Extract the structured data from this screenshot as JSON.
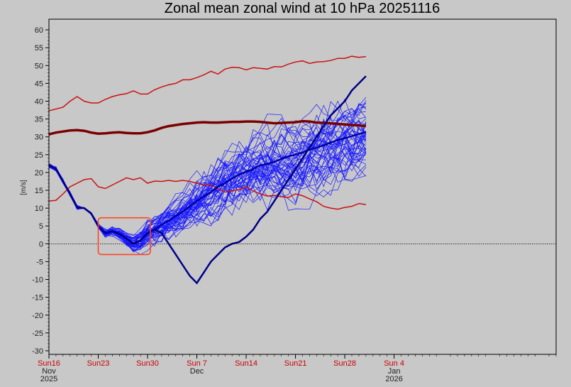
{
  "chart_data": {
    "type": "line",
    "title": "Zonal mean zonal wind at 10 hPa 20251116",
    "ylabel": "[m/s]",
    "xlabel": "",
    "ylim": [
      -31,
      63
    ],
    "xlim": [
      0,
      72
    ],
    "y_ticks": [
      60,
      55,
      50,
      45,
      40,
      35,
      30,
      25,
      20,
      15,
      10,
      5,
      0,
      -5,
      -10,
      -15,
      -20,
      -25,
      -30
    ],
    "x_ticks": [
      {
        "day": 0,
        "lines": [
          "Sun16",
          "Nov",
          "2025"
        ],
        "color": "#cc0000"
      },
      {
        "day": 7,
        "lines": [
          "Sun23"
        ],
        "color": "#cc0000"
      },
      {
        "day": 14,
        "lines": [
          "Sun30"
        ],
        "color": "#cc0000"
      },
      {
        "day": 21,
        "lines": [
          "Sun 7",
          "Dec"
        ],
        "color": "#cc0000"
      },
      {
        "day": 28,
        "lines": [
          "Sun14"
        ],
        "color": "#cc0000"
      },
      {
        "day": 35,
        "lines": [
          "Sun21"
        ],
        "color": "#cc0000"
      },
      {
        "day": 42,
        "lines": [
          "Sun28"
        ],
        "color": "#cc0000"
      },
      {
        "day": 49,
        "lines": [
          "Sun 4",
          "Jan",
          "2026"
        ],
        "color": "#cc0000"
      }
    ],
    "zero_line": true,
    "climatology": [
      {
        "name": "",
        "color": "#cc1111",
        "width": 1.5,
        "x": [
          0,
          2,
          3,
          4,
          5,
          6,
          7,
          8,
          9,
          10,
          11,
          12,
          13,
          14,
          15,
          16,
          17,
          18,
          19,
          20,
          21,
          22,
          23,
          24,
          25,
          26,
          27,
          28,
          29,
          30,
          31,
          32,
          33,
          34,
          35,
          36,
          37,
          38,
          39,
          40,
          41,
          42,
          43,
          44,
          45
        ],
        "y": [
          37.3,
          38.3,
          40,
          41.3,
          40,
          39.5,
          39.5,
          40.5,
          41.3,
          41.8,
          42.1,
          42.9,
          42,
          42,
          43.2,
          44,
          44.6,
          45,
          46,
          46,
          46.6,
          47.4,
          48.4,
          47.6,
          49,
          49.5,
          49.4,
          48.8,
          49.4,
          49.2,
          49,
          49.7,
          49.6,
          50.4,
          51,
          51.3,
          50.6,
          51,
          51.1,
          51.4,
          52,
          52,
          52.6,
          52.3,
          52.5
        ]
      },
      {
        "name": "",
        "color": "#cc1111",
        "width": 1.5,
        "x": [
          0,
          1,
          2,
          3,
          4,
          5,
          6,
          7,
          8,
          9,
          10,
          11,
          12,
          13,
          14,
          15,
          16,
          17,
          18,
          19,
          20,
          21,
          22,
          23,
          24,
          25,
          26,
          27,
          28,
          29,
          30,
          31,
          32,
          33,
          34,
          35,
          36,
          37,
          38,
          39,
          40,
          41,
          42,
          43,
          44,
          45
        ],
        "y": [
          12,
          12.2,
          14,
          16,
          17,
          18,
          18.3,
          16,
          15.5,
          16.5,
          17.5,
          18.5,
          18,
          18.5,
          17,
          17.6,
          17.5,
          17.8,
          17.5,
          17.8,
          17.5,
          17,
          16.5,
          16.5,
          15.5,
          14.5,
          14.8,
          15.2,
          16,
          14.8,
          14,
          13.4,
          13.6,
          13.2,
          13,
          14,
          13.5,
          12.6,
          11.8,
          10.5,
          10,
          9.7,
          10.2,
          10.5,
          11.3,
          11
        ]
      },
      {
        "name": "",
        "color": "#7a0000",
        "width": 3.5,
        "x": [
          0,
          1,
          2,
          3,
          4,
          5,
          6,
          7,
          8,
          9,
          10,
          11,
          12,
          13,
          14,
          15,
          16,
          17,
          18,
          19,
          20,
          21,
          22,
          23,
          24,
          25,
          26,
          27,
          28,
          29,
          30,
          31,
          32,
          33,
          34,
          35,
          36,
          37,
          38,
          39,
          40,
          41,
          42,
          43,
          44,
          45
        ],
        "y": [
          30.7,
          31.2,
          31.5,
          31.8,
          31.9,
          31.7,
          31.2,
          30.9,
          31,
          31.2,
          31.3,
          31.1,
          31,
          31,
          31.3,
          31.8,
          32.5,
          33,
          33.3,
          33.6,
          33.8,
          34,
          34.1,
          34,
          34,
          34.1,
          34.2,
          34.2,
          34.3,
          34.3,
          34.2,
          34,
          33.8,
          33.9,
          34,
          34.1,
          34.4,
          34.3,
          34,
          33.9,
          33.8,
          33.6,
          33.5,
          33.3,
          33.2,
          33
        ]
      }
    ],
    "deterministic": [
      {
        "name": "",
        "color": "#0000aa",
        "width": 2.5,
        "x": [
          0,
          1,
          2,
          3,
          4,
          5,
          6,
          7,
          8,
          9,
          10,
          11,
          12,
          13,
          14,
          15,
          16,
          17,
          18,
          19,
          20,
          21,
          22,
          23,
          24,
          25,
          26,
          27,
          28,
          29,
          30,
          31,
          32,
          33,
          34,
          35,
          36,
          37,
          38,
          39,
          40,
          41,
          42,
          43,
          44,
          45
        ],
        "y": [
          22,
          21,
          17.5,
          14,
          10.2,
          10,
          8.5,
          5,
          3,
          3.5,
          2.8,
          1.5,
          0,
          1,
          3,
          4,
          5.3,
          6.5,
          7.8,
          9,
          10.5,
          12,
          13.3,
          14.5,
          16,
          17,
          18.3,
          19.5,
          20.2,
          21,
          22,
          22.4,
          23,
          23.8,
          24.5,
          25,
          25.6,
          26.4,
          27,
          27.6,
          28.4,
          29.1,
          29.6,
          30.2,
          30.8,
          31.3
        ]
      },
      {
        "name": "",
        "color": "#000088",
        "width": 2.5,
        "x": [
          0,
          1,
          2,
          3,
          4,
          5,
          6,
          7,
          8,
          9,
          10,
          11,
          12,
          13,
          14,
          15,
          16,
          17,
          18,
          19,
          20,
          21,
          22,
          23,
          24,
          25,
          26,
          27,
          28,
          29,
          30,
          31,
          32,
          33,
          34,
          35,
          36,
          37,
          38,
          39,
          40,
          41,
          42,
          43,
          44,
          45
        ],
        "y": [
          22,
          21,
          17.5,
          14,
          10.2,
          10,
          8.5,
          5,
          3,
          3.5,
          2.8,
          1.5,
          0,
          1,
          3,
          4,
          3,
          0,
          -3,
          -6,
          -9,
          -11,
          -8,
          -5,
          -3,
          -1,
          0,
          0.5,
          2,
          4,
          7,
          9,
          12,
          15,
          18,
          21,
          24,
          27,
          30,
          33,
          36,
          38,
          40,
          43,
          45,
          47
        ]
      }
    ]
  }
}
